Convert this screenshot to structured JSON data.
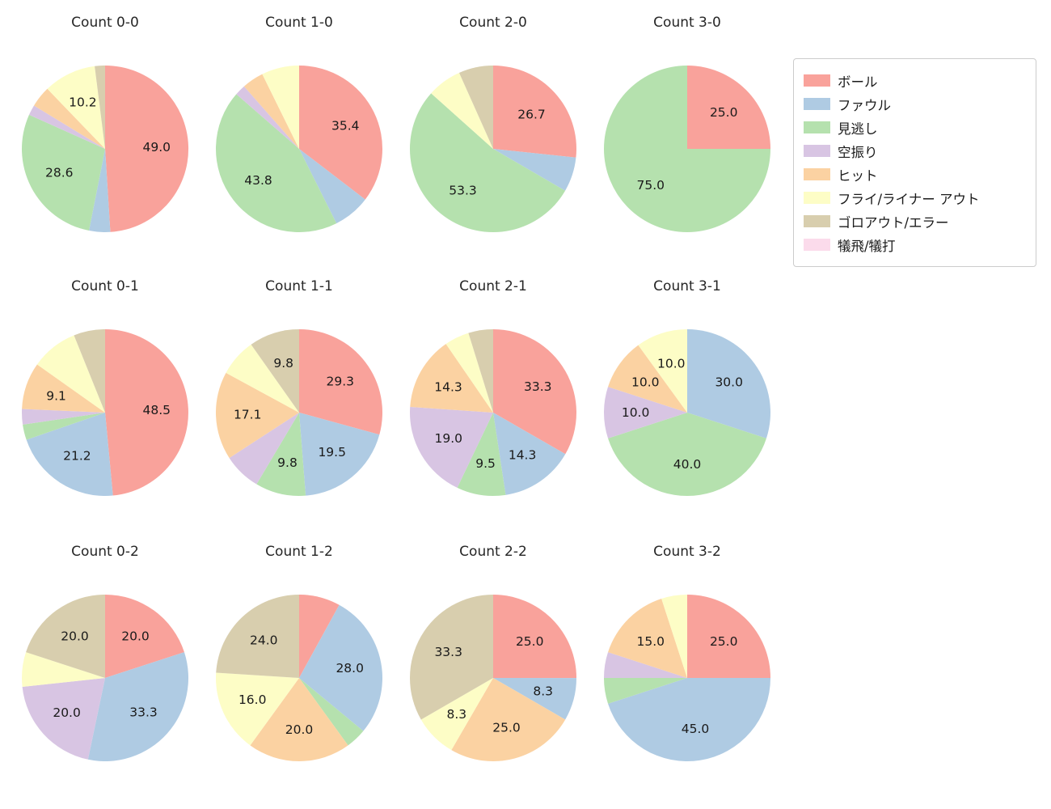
{
  "palette": {
    "ボール": "#F9A29B",
    "ファウル": "#AFCBE3",
    "見逃し": "#B5E1AE",
    "空振り": "#D8C5E3",
    "ヒット": "#FBD2A2",
    "フライ/ライナー アウト": "#FDFDC6",
    "ゴロアウト/エラー": "#D8CEAE",
    "犠飛/犠打": "#FBDBEB"
  },
  "legend": {
    "entries": [
      {
        "label": "ボール",
        "color": "#F9A29B"
      },
      {
        "label": "ファウル",
        "color": "#AFCBE3"
      },
      {
        "label": "見逃し",
        "color": "#B5E1AE"
      },
      {
        "label": "空振り",
        "color": "#D8C5E3"
      },
      {
        "label": "ヒット",
        "color": "#FBD2A2"
      },
      {
        "label": "フライ/ライナー アウト",
        "color": "#FDFDC6"
      },
      {
        "label": "ゴロアウト/エラー",
        "color": "#D8CEAE"
      },
      {
        "label": "犠飛/犠打",
        "color": "#FBDBEB"
      }
    ]
  },
  "chart_data": [
    {
      "type": "pie",
      "title": "Count 0-0",
      "slices": [
        {
          "name": "ボール",
          "value": 49.0,
          "label": "49.0"
        },
        {
          "name": "ファウル",
          "value": 4.1,
          "label": ""
        },
        {
          "name": "見逃し",
          "value": 28.6,
          "label": "28.6"
        },
        {
          "name": "空振り",
          "value": 2.0,
          "label": ""
        },
        {
          "name": "ヒット",
          "value": 4.1,
          "label": ""
        },
        {
          "name": "フライ/ライナー アウト",
          "value": 10.2,
          "label": "10.2"
        },
        {
          "name": "ゴロアウト/エラー",
          "value": 2.0,
          "label": ""
        }
      ]
    },
    {
      "type": "pie",
      "title": "Count 1-0",
      "slices": [
        {
          "name": "ボール",
          "value": 35.4,
          "label": "35.4"
        },
        {
          "name": "ファウル",
          "value": 7.2,
          "label": ""
        },
        {
          "name": "見逃し",
          "value": 43.8,
          "label": "43.8"
        },
        {
          "name": "空振り",
          "value": 2.1,
          "label": ""
        },
        {
          "name": "ヒット",
          "value": 4.2,
          "label": ""
        },
        {
          "name": "フライ/ライナー アウト",
          "value": 7.3,
          "label": ""
        }
      ]
    },
    {
      "type": "pie",
      "title": "Count 2-0",
      "slices": [
        {
          "name": "ボール",
          "value": 26.7,
          "label": "26.7"
        },
        {
          "name": "ファウル",
          "value": 6.7,
          "label": ""
        },
        {
          "name": "見逃し",
          "value": 53.3,
          "label": "53.3"
        },
        {
          "name": "フライ/ライナー アウト",
          "value": 6.7,
          "label": ""
        },
        {
          "name": "ゴロアウト/エラー",
          "value": 6.7,
          "label": ""
        }
      ]
    },
    {
      "type": "pie",
      "title": "Count 3-0",
      "slices": [
        {
          "name": "ボール",
          "value": 25.0,
          "label": "25.0"
        },
        {
          "name": "見逃し",
          "value": 75.0,
          "label": "75.0"
        }
      ]
    },
    {
      "type": "pie",
      "title": "Count 0-1",
      "slices": [
        {
          "name": "ボール",
          "value": 48.5,
          "label": "48.5"
        },
        {
          "name": "ファウル",
          "value": 21.2,
          "label": "21.2"
        },
        {
          "name": "見逃し",
          "value": 3.0,
          "label": ""
        },
        {
          "name": "空振り",
          "value": 3.0,
          "label": ""
        },
        {
          "name": "ヒット",
          "value": 9.1,
          "label": "9.1"
        },
        {
          "name": "フライ/ライナー アウト",
          "value": 9.1,
          "label": ""
        },
        {
          "name": "ゴロアウト/エラー",
          "value": 6.1,
          "label": ""
        }
      ]
    },
    {
      "type": "pie",
      "title": "Count 1-1",
      "slices": [
        {
          "name": "ボール",
          "value": 29.3,
          "label": "29.3"
        },
        {
          "name": "ファウル",
          "value": 19.5,
          "label": "19.5"
        },
        {
          "name": "見逃し",
          "value": 9.8,
          "label": "9.8"
        },
        {
          "name": "空振り",
          "value": 7.3,
          "label": ""
        },
        {
          "name": "ヒット",
          "value": 17.1,
          "label": "17.1"
        },
        {
          "name": "フライ/ライナー アウト",
          "value": 7.3,
          "label": ""
        },
        {
          "name": "ゴロアウト/エラー",
          "value": 9.8,
          "label": "9.8"
        }
      ]
    },
    {
      "type": "pie",
      "title": "Count 2-1",
      "slices": [
        {
          "name": "ボール",
          "value": 33.3,
          "label": "33.3"
        },
        {
          "name": "ファウル",
          "value": 14.3,
          "label": "14.3"
        },
        {
          "name": "見逃し",
          "value": 9.5,
          "label": "9.5"
        },
        {
          "name": "空振り",
          "value": 19.0,
          "label": "19.0"
        },
        {
          "name": "ヒット",
          "value": 14.3,
          "label": "14.3"
        },
        {
          "name": "フライ/ライナー アウト",
          "value": 4.8,
          "label": ""
        },
        {
          "name": "ゴロアウト/エラー",
          "value": 4.8,
          "label": ""
        }
      ]
    },
    {
      "type": "pie",
      "title": "Count 3-1",
      "slices": [
        {
          "name": "ファウル",
          "value": 30.0,
          "label": "30.0"
        },
        {
          "name": "見逃し",
          "value": 40.0,
          "label": "40.0"
        },
        {
          "name": "空振り",
          "value": 10.0,
          "label": "10.0"
        },
        {
          "name": "ヒット",
          "value": 10.0,
          "label": "10.0"
        },
        {
          "name": "フライ/ライナー アウト",
          "value": 10.0,
          "label": "10.0"
        }
      ]
    },
    {
      "type": "pie",
      "title": "Count 0-2",
      "slices": [
        {
          "name": "ボール",
          "value": 20.0,
          "label": "20.0"
        },
        {
          "name": "ファウル",
          "value": 33.3,
          "label": "33.3"
        },
        {
          "name": "空振り",
          "value": 20.0,
          "label": "20.0"
        },
        {
          "name": "フライ/ライナー アウト",
          "value": 6.7,
          "label": ""
        },
        {
          "name": "ゴロアウト/エラー",
          "value": 20.0,
          "label": "20.0"
        }
      ]
    },
    {
      "type": "pie",
      "title": "Count 1-2",
      "slices": [
        {
          "name": "ボール",
          "value": 8.0,
          "label": ""
        },
        {
          "name": "ファウル",
          "value": 28.0,
          "label": "28.0"
        },
        {
          "name": "見逃し",
          "value": 4.0,
          "label": ""
        },
        {
          "name": "ヒット",
          "value": 20.0,
          "label": "20.0"
        },
        {
          "name": "フライ/ライナー アウト",
          "value": 16.0,
          "label": "16.0"
        },
        {
          "name": "ゴロアウト/エラー",
          "value": 24.0,
          "label": "24.0"
        }
      ]
    },
    {
      "type": "pie",
      "title": "Count 2-2",
      "slices": [
        {
          "name": "ボール",
          "value": 25.0,
          "label": "25.0"
        },
        {
          "name": "ファウル",
          "value": 8.3,
          "label": "8.3"
        },
        {
          "name": "ヒット",
          "value": 25.0,
          "label": "25.0"
        },
        {
          "name": "フライ/ライナー アウト",
          "value": 8.3,
          "label": "8.3"
        },
        {
          "name": "ゴロアウト/エラー",
          "value": 33.3,
          "label": "33.3"
        }
      ]
    },
    {
      "type": "pie",
      "title": "Count 3-2",
      "slices": [
        {
          "name": "ボール",
          "value": 25.0,
          "label": "25.0"
        },
        {
          "name": "ファウル",
          "value": 45.0,
          "label": "45.0"
        },
        {
          "name": "見逃し",
          "value": 5.0,
          "label": ""
        },
        {
          "name": "空振り",
          "value": 5.0,
          "label": ""
        },
        {
          "name": "ヒット",
          "value": 15.0,
          "label": "15.0"
        },
        {
          "name": "フライ/ライナー アウト",
          "value": 5.0,
          "label": ""
        }
      ]
    }
  ]
}
